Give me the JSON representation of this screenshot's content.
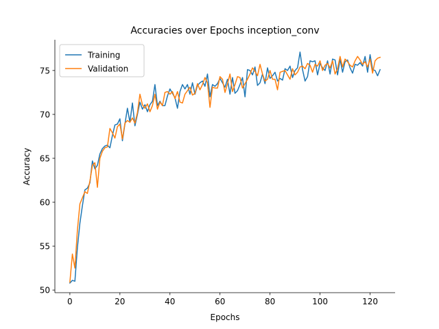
{
  "chart_data": {
    "type": "line",
    "title": "Accuracies over Epochs inception_conv",
    "xlabel": "Epochs",
    "ylabel": "Accuracy",
    "xlim": [
      -6,
      130
    ],
    "ylim": [
      49.7,
      78.5
    ],
    "xticks": [
      0,
      20,
      40,
      60,
      80,
      100,
      120
    ],
    "yticks": [
      50,
      55,
      60,
      65,
      70,
      75
    ],
    "legend_position": "top-left",
    "grid": false,
    "series": [
      {
        "name": "Training",
        "color": "#1f77b4",
        "values": [
          50.8,
          51.1,
          51.0,
          54.8,
          57.6,
          59.6,
          61.4,
          61.6,
          62.2,
          64.7,
          63.8,
          64.2,
          65.5,
          66.1,
          66.4,
          66.5,
          66.2,
          67.6,
          68.8,
          68.9,
          69.5,
          67.0,
          68.9,
          70.7,
          69.1,
          71.3,
          68.7,
          70.0,
          71.4,
          70.6,
          71.1,
          70.3,
          71.1,
          71.5,
          73.4,
          71.0,
          71.5,
          71.0,
          71.0,
          72.1,
          72.9,
          72.4,
          71.9,
          70.7,
          72.6,
          73.4,
          72.9,
          73.4,
          72.3,
          73.6,
          72.3,
          73.3,
          73.6,
          73.8,
          73.2,
          74.6,
          72.0,
          73.4,
          73.2,
          73.5,
          74.1,
          73.6,
          73.1,
          74.0,
          72.3,
          74.2,
          72.4,
          72.7,
          73.4,
          74.2,
          72.0,
          75.1,
          75.0,
          74.5,
          75.4,
          73.3,
          73.6,
          74.6,
          73.5,
          75.3,
          74.1,
          74.4,
          74.8,
          73.8,
          74.1,
          73.9,
          75.2,
          75.0,
          75.5,
          74.2,
          75.0,
          75.3,
          77.1,
          75.1,
          73.8,
          74.3,
          76.1,
          76.0,
          76.1,
          74.5,
          75.8,
          75.3,
          75.0,
          76.1,
          74.6,
          76.3,
          76.2,
          74.5,
          76.3,
          74.8,
          76.0,
          76.2,
          75.3,
          74.7,
          75.7,
          75.6,
          75.9,
          75.5,
          76.6,
          74.8,
          76.8,
          75.1,
          75.0,
          74.4,
          75.1
        ]
      },
      {
        "name": "Validation",
        "color": "#ff7f0e",
        "values": [
          50.9,
          54.1,
          52.5,
          56.8,
          59.8,
          60.5,
          61.2,
          61.0,
          62.4,
          64.2,
          64.5,
          61.7,
          65.0,
          65.8,
          66.2,
          66.3,
          68.4,
          67.9,
          67.3,
          68.6,
          68.9,
          67.2,
          69.0,
          69.3,
          69.1,
          69.6,
          69.0,
          70.2,
          72.3,
          71.1,
          70.7,
          71.2,
          70.3,
          71.0,
          72.3,
          70.6,
          71.4,
          71.0,
          72.5,
          72.6,
          72.3,
          72.6,
          71.8,
          72.6,
          71.4,
          71.3,
          72.3,
          72.7,
          73.1,
          72.2,
          72.4,
          73.5,
          72.8,
          73.4,
          74.2,
          73.6,
          70.8,
          73.1,
          73.0,
          73.0,
          74.3,
          74.0,
          72.5,
          73.5,
          74.6,
          72.6,
          73.4,
          74.3,
          74.2,
          73.0,
          73.5,
          74.0,
          74.6,
          75.3,
          74.9,
          74.4,
          75.7,
          74.6,
          73.8,
          74.0,
          75.0,
          74.0,
          74.0,
          72.8,
          74.8,
          74.9,
          75.0,
          74.5,
          74.0,
          75.2,
          74.5,
          74.8,
          75.4,
          75.5,
          75.2,
          75.8,
          75.6,
          74.8,
          75.7,
          75.5,
          76.1,
          75.0,
          75.6,
          75.8,
          75.3,
          76.1,
          74.6,
          75.2,
          76.6,
          75.4,
          76.3,
          76.0,
          75.6,
          75.4,
          76.1,
          76.6,
          76.2,
          75.7,
          76.0,
          75.4,
          76.3,
          74.7,
          76.1,
          76.4,
          76.5
        ]
      }
    ]
  }
}
